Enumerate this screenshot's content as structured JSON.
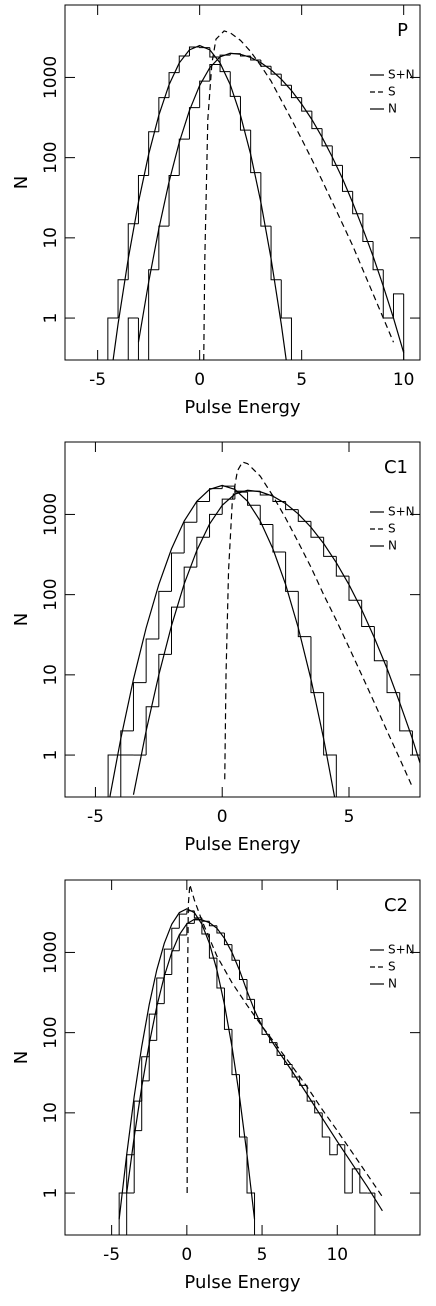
{
  "chart_data": [
    {
      "type": "line",
      "label": "P",
      "xlabel": "Pulse Energy",
      "ylabel": "N",
      "yscale": "log",
      "xlim": [
        -6.6,
        10.8
      ],
      "ylim": [
        0.3,
        8000
      ],
      "xticks": [
        -5,
        0,
        5,
        10
      ],
      "yticks": [
        1,
        10,
        100,
        1000
      ],
      "series": [
        {
          "name": "S+N",
          "color": "#000000",
          "dashed": false,
          "x": [
            -3,
            -2.5,
            -2,
            -1.5,
            -1,
            -0.5,
            0,
            0.5,
            1,
            1.5,
            2,
            2.5,
            3,
            3.5,
            4,
            4.5,
            5,
            5.5,
            6,
            6.5,
            7,
            7.5,
            8,
            8.5,
            9,
            9.5,
            10
          ],
          "values": [
            0.5,
            2.8,
            13,
            50,
            155,
            388,
            795,
            1327,
            1805,
            2000,
            1941,
            1776,
            1530,
            1242,
            950,
            686,
            465,
            299,
            180,
            102,
            55,
            27.5,
            13,
            5.9,
            2.5,
            1,
            0.37
          ]
        },
        {
          "name": "S",
          "color": "#000000",
          "dashed": true,
          "x": [
            0.2,
            0.25,
            0.4,
            0.6,
            0.8,
            1.2,
            1.5,
            2,
            2.5,
            3,
            3.5,
            4,
            4.5,
            5,
            5.5,
            6,
            6.5,
            7,
            7.5,
            8,
            8.5,
            9,
            9.5
          ],
          "values": [
            0.3,
            5,
            300,
            1500,
            3000,
            3800,
            3600,
            2900,
            2100,
            1400,
            900,
            520,
            300,
            170,
            95,
            52,
            28,
            15,
            8,
            4,
            2,
            1,
            0.5
          ]
        },
        {
          "name": "N",
          "color": "#000000",
          "dashed": false,
          "x": [
            -4.5,
            -4,
            -3.5,
            -3,
            -2.5,
            -2,
            -1.5,
            -1,
            -0.5,
            0,
            0.5,
            1,
            1.5,
            2,
            2.5,
            3,
            3.5,
            4,
            4.5
          ],
          "values": [
            0.1,
            0.84,
            5.5,
            27.8,
            110,
            338,
            811,
            1516,
            2206,
            2500,
            2206,
            1516,
            811,
            338,
            110,
            27.8,
            5.5,
            0.84,
            0.1
          ]
        }
      ],
      "histograms": [
        {
          "bins": [
            -3.5,
            -3,
            -2.5,
            -2,
            -1.5,
            -1,
            -0.5,
            0,
            0.5,
            1,
            1.5,
            2,
            2.5,
            3,
            3.5,
            4,
            4.5,
            5,
            5.5,
            6,
            6.5,
            7,
            7.5,
            8,
            8.5,
            9,
            9.5,
            10,
            10.5
          ],
          "counts": [
            1,
            0,
            4,
            14,
            60,
            170,
            420,
            900,
            1450,
            1900,
            1980,
            1850,
            1650,
            1380,
            1100,
            800,
            560,
            380,
            230,
            140,
            80,
            38,
            20,
            9,
            4,
            1,
            2,
            0
          ]
        },
        {
          "bins": [
            -4.5,
            -4,
            -3.5,
            -3,
            -2.5,
            -2,
            -1.5,
            -1,
            -0.5,
            0,
            0.5,
            1,
            1.5,
            2,
            2.5,
            3,
            3.5,
            4,
            4.5
          ],
          "counts": [
            1,
            3,
            15,
            60,
            210,
            560,
            1150,
            1850,
            2400,
            2350,
            1800,
            1180,
            580,
            220,
            65,
            14,
            3,
            1
          ]
        }
      ]
    },
    {
      "type": "line",
      "label": "C1",
      "xlabel": "Pulse Energy",
      "ylabel": "N",
      "yscale": "log",
      "xlim": [
        -6.2,
        7.8
      ],
      "ylim": [
        0.3,
        8000
      ],
      "xticks": [
        -5,
        0,
        5
      ],
      "yticks": [
        1,
        10,
        100,
        1000
      ],
      "series": [
        {
          "name": "S+N",
          "color": "#000000",
          "dashed": false,
          "x": [
            -3.5,
            -3,
            -2.5,
            -2,
            -1.5,
            -1,
            -0.5,
            0,
            0.5,
            1,
            1.5,
            2,
            2.5,
            3,
            3.5,
            4,
            4.5,
            5,
            5.5,
            6,
            6.5,
            7,
            7.5,
            8
          ],
          "values": [
            0.32,
            2,
            10,
            41,
            136,
            357,
            758,
            1300,
            1796,
            2000,
            1917,
            1688,
            1366,
            1015,
            693,
            434,
            250,
            133,
            65,
            29,
            12,
            4.5,
            1.6,
            0.5
          ]
        },
        {
          "name": "S",
          "color": "#000000",
          "dashed": true,
          "x": [
            0.1,
            0.15,
            0.25,
            0.4,
            0.6,
            0.8,
            1,
            1.5,
            2,
            2.5,
            3,
            3.5,
            4,
            4.5,
            5,
            5.5,
            6,
            6.5,
            7,
            7.5
          ],
          "values": [
            0.5,
            10,
            200,
            1500,
            3500,
            4500,
            4300,
            3000,
            1700,
            900,
            450,
            220,
            100,
            48,
            22,
            10,
            4.5,
            2,
            0.9,
            0.4
          ]
        },
        {
          "name": "N",
          "color": "#000000",
          "dashed": false,
          "x": [
            -4.5,
            -4,
            -3.5,
            -3,
            -2.5,
            -2,
            -1.5,
            -1,
            -0.5,
            0,
            0.5,
            1,
            1.5,
            2,
            2.5,
            3,
            3.5,
            4,
            4.5
          ],
          "values": [
            0.23,
            1.6,
            8.8,
            38.5,
            134,
            372,
            827,
            1460,
            2052,
            2300,
            2052,
            1460,
            827,
            372,
            134,
            38.5,
            8.8,
            1.6,
            0.23
          ]
        }
      ],
      "histograms": [
        {
          "bins": [
            -4,
            -3.5,
            -3,
            -2.5,
            -2,
            -1.5,
            -1,
            -0.5,
            0,
            0.5,
            1,
            1.5,
            2,
            2.5,
            3,
            3.5,
            4,
            4.5,
            5,
            5.5,
            6,
            6.5,
            7,
            7.5,
            8
          ],
          "counts": [
            1,
            1,
            4,
            18,
            70,
            220,
            520,
            1000,
            1550,
            1950,
            1950,
            1750,
            1450,
            1150,
            820,
            520,
            300,
            170,
            85,
            40,
            15,
            6,
            2,
            1
          ]
        },
        {
          "bins": [
            -4.5,
            -4,
            -3.5,
            -3,
            -2.5,
            -2,
            -1.5,
            -1,
            -0.5,
            0,
            0.5,
            1,
            1.5,
            2,
            2.5,
            3,
            3.5,
            4,
            4.5
          ],
          "counts": [
            1,
            2,
            8,
            28,
            110,
            330,
            800,
            1450,
            2100,
            2250,
            1900,
            1300,
            750,
            340,
            110,
            30,
            6,
            1
          ]
        }
      ]
    },
    {
      "type": "line",
      "label": "C2",
      "xlabel": "Pulse Energy",
      "ylabel": "N",
      "yscale": "log",
      "xlim": [
        -8.1,
        15.5
      ],
      "ylim": [
        0.3,
        8000
      ],
      "xticks": [
        -5,
        0,
        5,
        10
      ],
      "yticks": [
        1,
        10,
        100,
        1000
      ],
      "series": [
        {
          "name": "S+N",
          "color": "#000000",
          "dashed": false,
          "x": [
            -4,
            -3.5,
            -3,
            -2.5,
            -2,
            -1.5,
            -1,
            -0.5,
            0,
            0.5,
            0.6,
            1,
            1.5,
            2,
            2.5,
            3,
            3.5,
            4,
            4.5,
            5,
            6,
            7,
            8,
            9,
            10,
            11,
            12,
            13
          ],
          "values": [
            1,
            5,
            21,
            73,
            211,
            505,
            1003,
            1658,
            2274,
            2590,
            2600,
            2550,
            2350,
            2000,
            1500,
            1000,
            600,
            330,
            190,
            120,
            62,
            33,
            17,
            8.6,
            4.4,
            2.3,
            1.2,
            0.6
          ]
        },
        {
          "name": "S",
          "color": "#000000",
          "dashed": true,
          "x": [
            0.02,
            0.05,
            0.1,
            0.2,
            0.5,
            1,
            1.5,
            2,
            3,
            4,
            5,
            6,
            7,
            8,
            9,
            10,
            11,
            12,
            13
          ],
          "values": [
            1,
            500,
            4000,
            7000,
            4500,
            2500,
            1500,
            900,
            420,
            220,
            120,
            68,
            38,
            21,
            11,
            6,
            3.2,
            1.7,
            0.9
          ]
        },
        {
          "name": "N",
          "color": "#000000",
          "dashed": false,
          "x": [
            -4.5,
            -4,
            -3.5,
            -3,
            -2.5,
            -2,
            -1.5,
            -1,
            -0.5,
            0,
            0.5,
            1,
            1.5,
            2,
            2.5,
            3,
            3.5,
            4,
            4.5
          ],
          "values": [
            0.47,
            3,
            16,
            67,
            224,
            603,
            1300,
            2250,
            3135,
            3500,
            3135,
            2250,
            1300,
            603,
            224,
            67,
            16,
            3,
            0.47
          ]
        }
      ],
      "histograms": [
        {
          "bins": [
            -4,
            -3.5,
            -3,
            -2.5,
            -2,
            -1.5,
            -1,
            -0.5,
            0,
            0.5,
            1,
            1.5,
            2,
            2.5,
            3,
            3.5,
            4,
            4.5,
            5,
            5.5,
            6,
            6.5,
            7,
            7.5,
            8,
            8.5,
            9,
            9.5,
            10,
            10.5,
            11,
            11.5,
            12,
            12.5,
            13
          ],
          "counts": [
            1,
            6,
            25,
            80,
            230,
            530,
            1050,
            1650,
            2300,
            2550,
            2450,
            2150,
            1750,
            1250,
            800,
            460,
            260,
            150,
            95,
            75,
            52,
            40,
            28,
            22,
            14,
            10,
            5,
            3,
            4,
            1,
            2,
            1,
            1,
            0
          ]
        },
        {
          "bins": [
            -4.5,
            -4,
            -3.5,
            -3,
            -2.5,
            -2,
            -1.5,
            -1,
            -0.5,
            0,
            0.5,
            1,
            1.5,
            2,
            2.5,
            3,
            3.5,
            4,
            4.5
          ],
          "counts": [
            1,
            3,
            14,
            50,
            170,
            480,
            1100,
            2000,
            3000,
            3300,
            2700,
            1700,
            850,
            360,
            110,
            30,
            5,
            1
          ]
        }
      ]
    }
  ]
}
